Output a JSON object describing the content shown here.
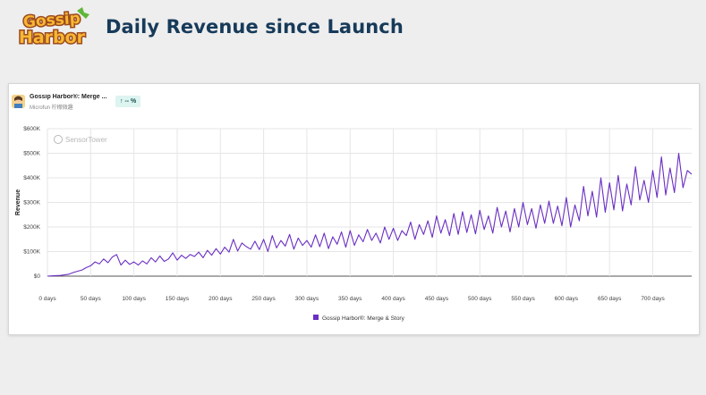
{
  "page": {
    "title": "Daily Revenue since Launch",
    "logo_text_top": "Gossip",
    "logo_text_bottom": "Harbor"
  },
  "app": {
    "name": "Gossip Harbor®: Merge ...",
    "publisher": "Microfun 柠檬微趣",
    "growth_badge": "↑ -- %"
  },
  "colors": {
    "series": "#6a2fc2",
    "title": "#173a5a",
    "grid": "#e6e6e6",
    "axis_text": "#444444",
    "watermark": "#b8b8b8"
  },
  "watermark": "SensorTower",
  "chart_data": {
    "type": "line",
    "title": "",
    "xlabel": "",
    "ylabel": "Revenue",
    "x_unit": "days since launch",
    "xlim": [
      0,
      745
    ],
    "ylim": [
      0,
      600000
    ],
    "y_ticks": [
      {
        "value": 0,
        "label": "$0"
      },
      {
        "value": 100000,
        "label": "$100K"
      },
      {
        "value": 200000,
        "label": "$200K"
      },
      {
        "value": 300000,
        "label": "$300K"
      },
      {
        "value": 400000,
        "label": "$400K"
      },
      {
        "value": 500000,
        "label": "$500K"
      },
      {
        "value": 600000,
        "label": "$600K"
      }
    ],
    "x_ticks": [
      {
        "value": 0,
        "label": "0 days"
      },
      {
        "value": 50,
        "label": "50 days"
      },
      {
        "value": 100,
        "label": "100 days"
      },
      {
        "value": 150,
        "label": "150 days"
      },
      {
        "value": 200,
        "label": "200 days"
      },
      {
        "value": 250,
        "label": "250 days"
      },
      {
        "value": 300,
        "label": "300 days"
      },
      {
        "value": 350,
        "label": "350 days"
      },
      {
        "value": 400,
        "label": "400 days"
      },
      {
        "value": 450,
        "label": "450 days"
      },
      {
        "value": 500,
        "label": "500 days"
      },
      {
        "value": 550,
        "label": "550 days"
      },
      {
        "value": 600,
        "label": "600 days"
      },
      {
        "value": 650,
        "label": "650 days"
      },
      {
        "value": 700,
        "label": "700 days"
      }
    ],
    "grid": true,
    "legend_position": "bottom",
    "series": [
      {
        "name": "Gossip Harbor®: Merge & Story",
        "x": [
          0,
          5,
          10,
          15,
          20,
          25,
          30,
          35,
          40,
          45,
          50,
          55,
          60,
          65,
          70,
          75,
          80,
          85,
          90,
          95,
          100,
          105,
          110,
          115,
          120,
          125,
          130,
          135,
          140,
          145,
          150,
          155,
          160,
          165,
          170,
          175,
          180,
          185,
          190,
          195,
          200,
          205,
          210,
          215,
          220,
          225,
          230,
          235,
          240,
          245,
          250,
          255,
          260,
          265,
          270,
          275,
          280,
          285,
          290,
          295,
          300,
          305,
          310,
          315,
          320,
          325,
          330,
          335,
          340,
          345,
          350,
          355,
          360,
          365,
          370,
          375,
          380,
          385,
          390,
          395,
          400,
          405,
          410,
          415,
          420,
          425,
          430,
          435,
          440,
          445,
          450,
          455,
          460,
          465,
          470,
          475,
          480,
          485,
          490,
          495,
          500,
          505,
          510,
          515,
          520,
          525,
          530,
          535,
          540,
          545,
          550,
          555,
          560,
          565,
          570,
          575,
          580,
          585,
          590,
          595,
          600,
          605,
          610,
          615,
          620,
          625,
          630,
          635,
          640,
          645,
          650,
          655,
          660,
          665,
          670,
          675,
          680,
          685,
          690,
          695,
          700,
          705,
          710,
          715,
          720,
          725,
          730,
          735,
          740,
          745
        ],
        "y": [
          0,
          1000,
          2000,
          3000,
          5000,
          8000,
          15000,
          20000,
          25000,
          35000,
          42000,
          58000,
          50000,
          70000,
          55000,
          78000,
          88000,
          45000,
          65000,
          48000,
          58000,
          45000,
          62000,
          50000,
          75000,
          58000,
          82000,
          60000,
          70000,
          95000,
          65000,
          85000,
          72000,
          88000,
          80000,
          98000,
          75000,
          105000,
          85000,
          112000,
          90000,
          118000,
          98000,
          150000,
          102000,
          135000,
          120000,
          110000,
          142000,
          108000,
          150000,
          100000,
          165000,
          115000,
          145000,
          122000,
          170000,
          110000,
          155000,
          125000,
          145000,
          118000,
          168000,
          120000,
          175000,
          112000,
          160000,
          130000,
          180000,
          118000,
          185000,
          125000,
          168000,
          140000,
          190000,
          145000,
          175000,
          135000,
          200000,
          150000,
          195000,
          145000,
          185000,
          165000,
          220000,
          150000,
          210000,
          170000,
          225000,
          158000,
          245000,
          175000,
          230000,
          165000,
          255000,
          170000,
          262000,
          178000,
          250000,
          172000,
          268000,
          190000,
          245000,
          175000,
          280000,
          200000,
          265000,
          180000,
          275000,
          200000,
          300000,
          210000,
          275000,
          195000,
          290000,
          215000,
          305000,
          215000,
          285000,
          205000,
          320000,
          200000,
          290000,
          225000,
          365000,
          245000,
          345000,
          240000,
          400000,
          260000,
          380000,
          270000,
          410000,
          265000,
          375000,
          290000,
          445000,
          310000,
          390000,
          300000,
          430000,
          320000,
          485000,
          330000,
          440000,
          340000,
          500000,
          360000,
          430000,
          415000
        ]
      }
    ]
  }
}
